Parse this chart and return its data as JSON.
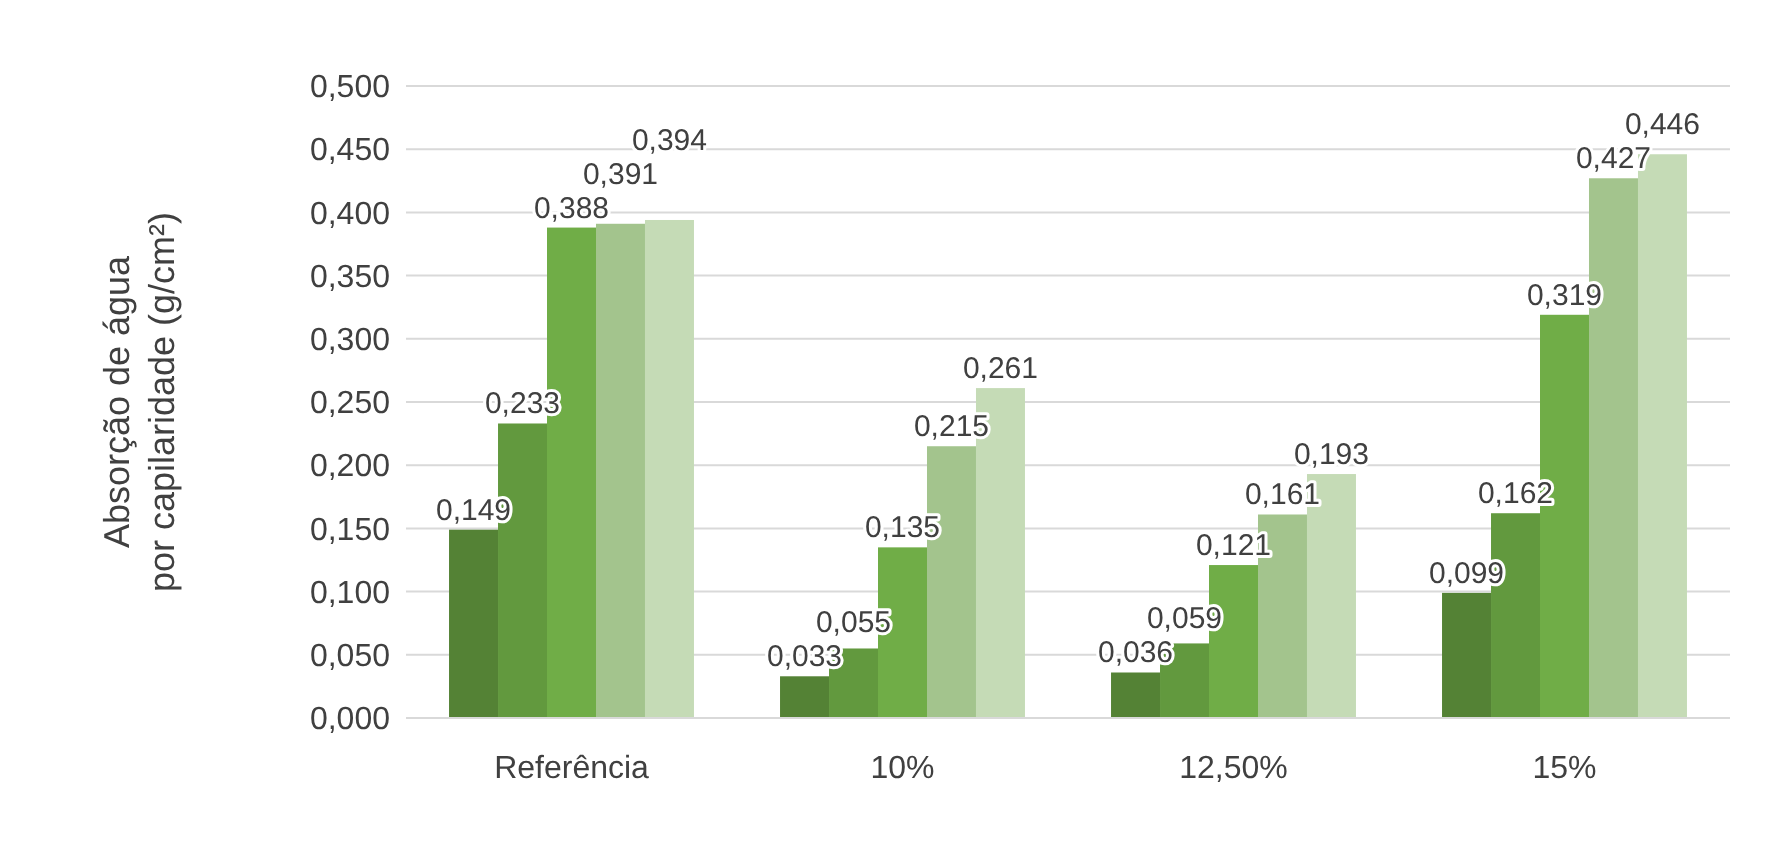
{
  "chart_data": {
    "type": "bar",
    "ylabel": "Absorção de água por capilaridade (g/cm²)",
    "categories": [
      "Referência",
      "10%",
      "12,50%",
      "15%"
    ],
    "series": [
      {
        "color": "#548235",
        "values": [
          0.149,
          0.033,
          0.036,
          0.099
        ],
        "value_labels": [
          "0,149",
          "0,033",
          "0,036",
          "0,099"
        ]
      },
      {
        "color": "#62993e",
        "values": [
          0.233,
          0.055,
          0.059,
          0.162
        ],
        "value_labels": [
          "0,233",
          "0,055",
          "0,059",
          "0,162"
        ]
      },
      {
        "color": "#70ad47",
        "values": [
          0.388,
          0.135,
          0.121,
          0.319
        ],
        "value_labels": [
          "0,388",
          "0,135",
          "0,121",
          "0,319"
        ]
      },
      {
        "color": "#a3c48d",
        "values": [
          0.391,
          0.215,
          0.161,
          0.427
        ],
        "value_labels": [
          "0,391",
          "0,215",
          "0,161",
          "0,427"
        ]
      },
      {
        "color": "#c5dbb6",
        "values": [
          0.394,
          0.261,
          0.193,
          0.446
        ],
        "value_labels": [
          "0,394",
          "0,261",
          "0,193",
          "0,446"
        ]
      }
    ],
    "ylim": [
      0,
      0.5
    ],
    "yticks": [
      {
        "value": 0,
        "label": "0,000"
      },
      {
        "value": 0.05,
        "label": "0,050"
      },
      {
        "value": 0.1,
        "label": "0,100"
      },
      {
        "value": 0.15,
        "label": "0,150"
      },
      {
        "value": 0.2,
        "label": "0,200"
      },
      {
        "value": 0.25,
        "label": "0,250"
      },
      {
        "value": 0.3,
        "label": "0,300"
      },
      {
        "value": 0.35,
        "label": "0,350"
      },
      {
        "value": 0.4,
        "label": "0,400"
      },
      {
        "value": 0.45,
        "label": "0,450"
      },
      {
        "value": 0.5,
        "label": "0,500"
      }
    ],
    "grid": "y"
  }
}
